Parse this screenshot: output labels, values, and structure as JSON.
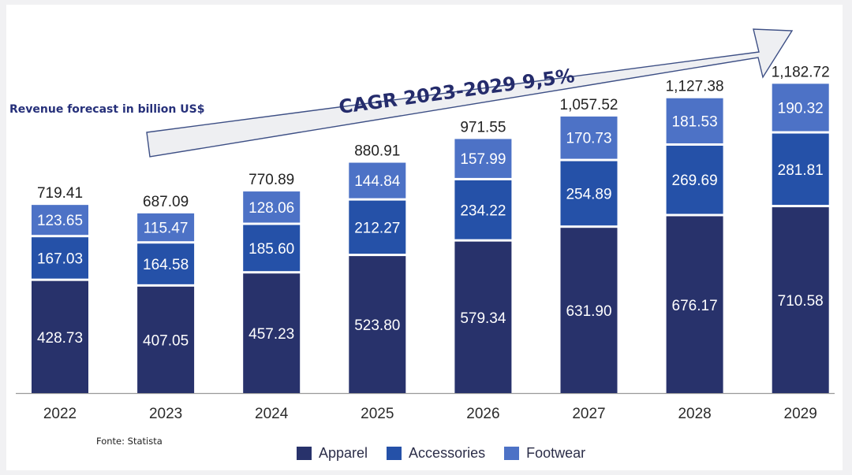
{
  "chart_data": {
    "type": "bar",
    "stacked": true,
    "categories": [
      "2022",
      "2023",
      "2024",
      "2025",
      "2026",
      "2027",
      "2028",
      "2029"
    ],
    "series": [
      {
        "name": "Apparel",
        "color": "#28326b",
        "values": [
          428.73,
          407.05,
          457.23,
          523.8,
          579.34,
          631.9,
          676.17,
          710.58
        ],
        "labels": [
          "428.73",
          "407.05",
          "457.23",
          "523.80",
          "579.34",
          "631.90",
          "676.17",
          "710.58"
        ]
      },
      {
        "name": "Accessories",
        "color": "#2551a8",
        "values": [
          167.03,
          164.58,
          185.6,
          212.27,
          234.22,
          254.89,
          269.69,
          281.81
        ],
        "labels": [
          "167.03",
          "164.58",
          "185.60",
          "212.27",
          "234.22",
          "254.89",
          "269.69",
          "281.81"
        ]
      },
      {
        "name": "Footwear",
        "color": "#4d72c6",
        "values": [
          123.65,
          115.47,
          128.06,
          144.84,
          157.99,
          170.73,
          181.53,
          190.32
        ],
        "labels": [
          "123.65",
          "115.47",
          "128.06",
          "144.84",
          "157.99",
          "170.73",
          "181.53",
          "190.32"
        ]
      }
    ],
    "totals": [
      719.41,
      687.09,
      770.89,
      880.91,
      971.55,
      1057.52,
      1127.38,
      1182.72
    ],
    "total_labels": [
      "719.41",
      "687.09",
      "770.89",
      "880.91",
      "971.55",
      "1,057.52",
      "1,127.38",
      "1,182.72"
    ],
    "ylabel": "Revenue forecast in billion US$",
    "annotation": "CAGR 2023-2029  9,5%",
    "source": "Fonte: Statista",
    "legend_position": "bottom-center",
    "grid": false
  }
}
